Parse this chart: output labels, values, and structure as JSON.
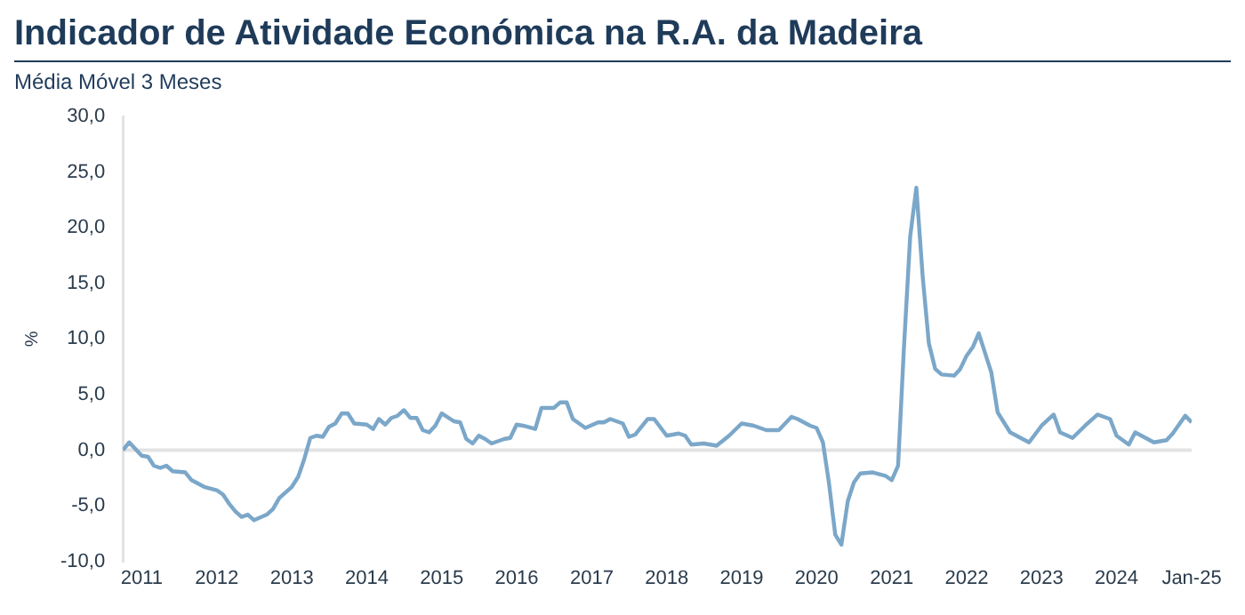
{
  "chart_data": {
    "type": "line",
    "title": "Indicador de Atividade Económica na R.A. da Madeira",
    "subtitle": "Média Móvel 3 Meses",
    "ylabel": "%",
    "x": [
      "2010-10",
      "2010-11",
      "2011-01",
      "2011-02",
      "2011-03",
      "2011-04",
      "2011-05",
      "2011-06",
      "2011-08",
      "2011-09",
      "2011-11",
      "2012-01",
      "2012-02",
      "2012-03",
      "2012-04",
      "2012-05",
      "2012-06",
      "2012-07",
      "2012-09",
      "2012-10",
      "2012-11",
      "2013-01",
      "2013-02",
      "2013-03",
      "2013-04",
      "2013-05",
      "2013-06",
      "2013-07",
      "2013-08",
      "2013-09",
      "2013-10",
      "2013-11",
      "2014-01",
      "2014-02",
      "2014-03",
      "2014-04",
      "2014-05",
      "2014-06",
      "2014-07",
      "2014-08",
      "2014-09",
      "2014-10",
      "2014-11",
      "2014-12",
      "2015-01",
      "2015-03",
      "2015-04",
      "2015-05",
      "2015-06",
      "2015-07",
      "2015-08",
      "2015-09",
      "2015-11",
      "2015-12",
      "2016-01",
      "2016-02",
      "2016-04",
      "2016-05",
      "2016-07",
      "2016-08",
      "2016-09",
      "2016-10",
      "2016-12",
      "2017-02",
      "2017-03",
      "2017-04",
      "2017-06",
      "2017-07",
      "2017-08",
      "2017-10",
      "2017-11",
      "2018-01",
      "2018-03",
      "2018-04",
      "2018-05",
      "2018-07",
      "2018-09",
      "2018-11",
      "2019-01",
      "2019-03",
      "2019-05",
      "2019-07",
      "2019-09",
      "2019-10",
      "2019-12",
      "2020-01",
      "2020-02",
      "2020-03",
      "2020-04",
      "2020-05",
      "2020-06",
      "2020-07",
      "2020-08",
      "2020-10",
      "2020-12",
      "2021-01",
      "2021-02",
      "2021-03",
      "2021-04",
      "2021-05",
      "2021-06",
      "2021-07",
      "2021-08",
      "2021-09",
      "2021-11",
      "2021-12",
      "2022-01",
      "2022-02",
      "2022-03",
      "2022-05",
      "2022-06",
      "2022-08",
      "2022-10",
      "2022-11",
      "2023-01",
      "2023-03",
      "2023-04",
      "2023-06",
      "2023-08",
      "2023-10",
      "2023-12",
      "2024-01",
      "2024-03",
      "2024-04",
      "2024-07",
      "2024-09",
      "2024-10",
      "2024-12",
      "2025-01"
    ],
    "series": [
      {
        "color": "#7ba7c9",
        "values": [
          0.0,
          0.7,
          -0.5,
          -0.6,
          -1.4,
          -1.6,
          -1.4,
          -1.9,
          -2.0,
          -2.7,
          -3.3,
          -3.6,
          -4.0,
          -4.8,
          -5.5,
          -6.0,
          -5.8,
          -6.3,
          -5.8,
          -5.3,
          -4.3,
          -3.3,
          -2.4,
          -0.9,
          1.1,
          1.3,
          1.2,
          2.1,
          2.4,
          3.3,
          3.3,
          2.4,
          2.3,
          1.9,
          2.8,
          2.3,
          2.9,
          3.1,
          3.6,
          2.9,
          2.9,
          1.8,
          1.6,
          2.2,
          3.3,
          2.6,
          2.5,
          1.0,
          0.6,
          1.3,
          1.0,
          0.6,
          1.0,
          1.1,
          2.3,
          2.2,
          1.9,
          3.8,
          3.8,
          4.3,
          4.3,
          2.8,
          2.0,
          2.5,
          2.5,
          2.8,
          2.4,
          1.2,
          1.4,
          2.8,
          2.8,
          1.3,
          1.5,
          1.3,
          0.5,
          0.6,
          0.4,
          1.3,
          2.4,
          2.2,
          1.8,
          1.8,
          3.0,
          2.8,
          2.2,
          2.0,
          0.7,
          -2.9,
          -7.6,
          -8.5,
          -4.6,
          -2.9,
          -2.1,
          -2.0,
          -2.3,
          -2.7,
          -1.4,
          9.0,
          19.2,
          23.6,
          15.6,
          9.6,
          7.3,
          6.8,
          6.7,
          7.3,
          8.5,
          9.3,
          10.5,
          7.0,
          3.4,
          1.6,
          1.0,
          0.7,
          2.2,
          3.2,
          1.6,
          1.1,
          2.2,
          3.2,
          2.8,
          1.3,
          0.5,
          1.6,
          0.7,
          0.9,
          1.5,
          3.1,
          2.5
        ]
      }
    ],
    "xlim": [
      "2010-10",
      "2025-01"
    ],
    "xticks": [
      {
        "value": "2011-01",
        "label": "2011"
      },
      {
        "value": "2012-01",
        "label": "2012"
      },
      {
        "value": "2013-01",
        "label": "2013"
      },
      {
        "value": "2014-01",
        "label": "2014"
      },
      {
        "value": "2015-01",
        "label": "2015"
      },
      {
        "value": "2016-01",
        "label": "2016"
      },
      {
        "value": "2017-01",
        "label": "2017"
      },
      {
        "value": "2018-01",
        "label": "2018"
      },
      {
        "value": "2019-01",
        "label": "2019"
      },
      {
        "value": "2020-01",
        "label": "2020"
      },
      {
        "value": "2021-01",
        "label": "2021"
      },
      {
        "value": "2022-01",
        "label": "2022"
      },
      {
        "value": "2023-01",
        "label": "2023"
      },
      {
        "value": "2024-01",
        "label": "2024"
      },
      {
        "value": "2025-01",
        "label": "Jan-25"
      }
    ],
    "ylim": [
      -10,
      30
    ],
    "yticks": [
      {
        "value": -10,
        "label": "-10,0"
      },
      {
        "value": -5,
        "label": "-5,0"
      },
      {
        "value": 0,
        "label": "0,0"
      },
      {
        "value": 5,
        "label": "5,0"
      },
      {
        "value": 10,
        "label": "10,0"
      },
      {
        "value": 15,
        "label": "15,0"
      },
      {
        "value": 20,
        "label": "20,0"
      },
      {
        "value": 25,
        "label": "25,0"
      },
      {
        "value": 30,
        "label": "30,0"
      }
    ],
    "ref_lines": [
      {
        "axis": "y",
        "value": 0,
        "color": "#e3e3e3"
      }
    ],
    "grid": false,
    "legend": false,
    "marker": "none",
    "line_style": "solid"
  }
}
